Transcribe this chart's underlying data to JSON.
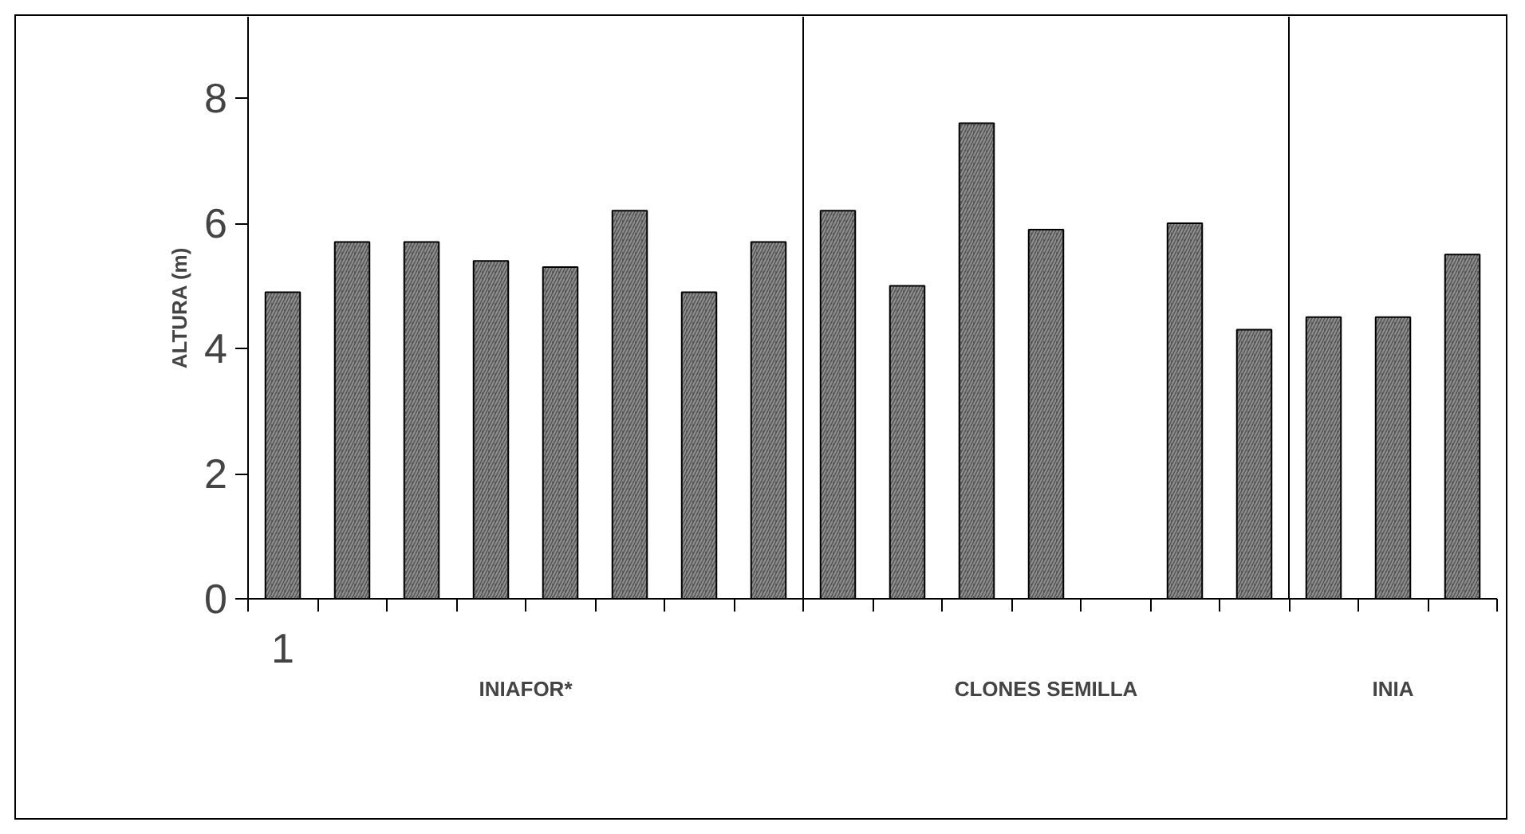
{
  "chart_data": {
    "type": "bar",
    "ylabel": "ALTURA (m)",
    "categories": [
      "1",
      null,
      null,
      null,
      null,
      null,
      null,
      null,
      null,
      null,
      null,
      null,
      null,
      null,
      null,
      null,
      null,
      null
    ],
    "values": [
      4.9,
      5.7,
      5.7,
      5.4,
      5.3,
      6.2,
      4.9,
      5.7,
      6.2,
      5.0,
      7.6,
      5.9,
      null,
      6.0,
      4.3,
      4.5,
      4.5,
      5.5
    ],
    "color": "#555555",
    "ylim": [
      0,
      9.3
    ],
    "yticks": [
      0,
      2,
      4,
      6,
      8
    ],
    "annotations": [
      "INIAFOR*",
      "CLONES SEMILLA",
      "INIA"
    ],
    "grid": false
  }
}
